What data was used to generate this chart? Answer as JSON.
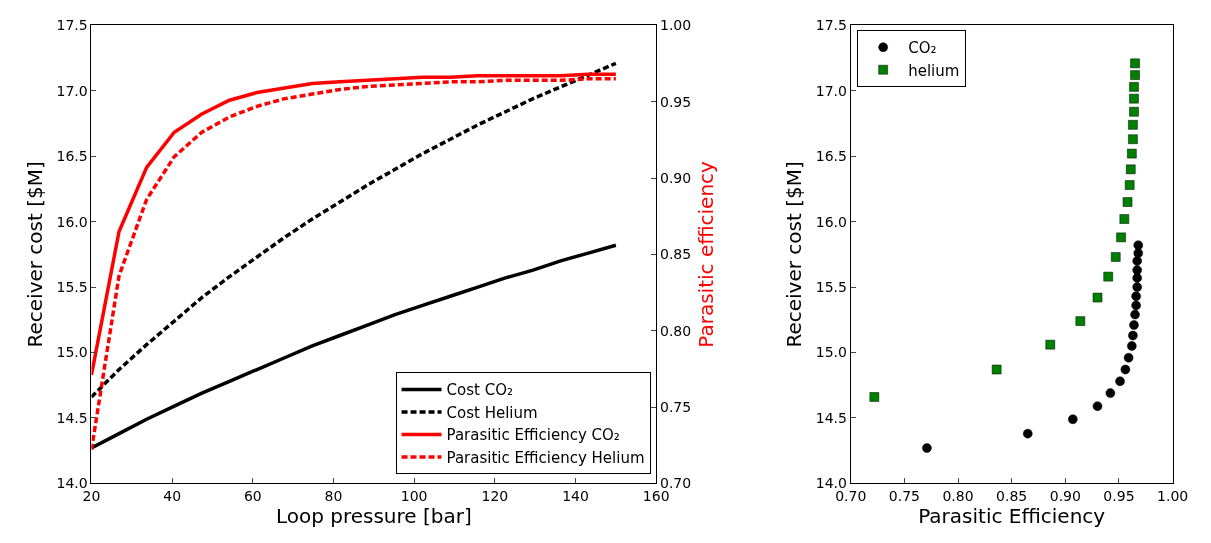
{
  "chart_data": [
    {
      "type": "line",
      "xlabel": "Loop pressure [bar]",
      "ylabel": "Receiver cost [$M]",
      "y2label": "Parasitic efficiency",
      "x": [
        20,
        26.84,
        33.68,
        40.53,
        47.37,
        54.21,
        61.05,
        67.89,
        74.74,
        81.58,
        88.42,
        95.26,
        102.11,
        108.95,
        115.79,
        122.63,
        129.47,
        136.32,
        143.16,
        150
      ],
      "xlim": [
        20,
        160
      ],
      "xticks": [
        20,
        40,
        60,
        80,
        100,
        120,
        140,
        160
      ],
      "ylim": [
        14.0,
        17.5
      ],
      "yticks": [
        {
          "value": 14.0,
          "label": "14.0"
        },
        {
          "value": 14.5,
          "label": "14.5"
        },
        {
          "value": 15.0,
          "label": "15.0"
        },
        {
          "value": 15.5,
          "label": "15.5"
        },
        {
          "value": 16.0,
          "label": "16.0"
        },
        {
          "value": 16.5,
          "label": "16.5"
        },
        {
          "value": 17.0,
          "label": "17.0"
        },
        {
          "value": 17.5,
          "label": "17.5"
        }
      ],
      "y2lim": [
        0.7,
        1.0
      ],
      "y2ticks": [
        {
          "value": 0.7,
          "label": "0.70"
        },
        {
          "value": 0.75,
          "label": "0.75"
        },
        {
          "value": 0.8,
          "label": "0.80"
        },
        {
          "value": 0.85,
          "label": "0.85"
        },
        {
          "value": 0.9,
          "label": "0.90"
        },
        {
          "value": 0.95,
          "label": "0.95"
        },
        {
          "value": 1.0,
          "label": "1.00"
        }
      ],
      "legend": "bottom right",
      "series": [
        {
          "name": "Cost CO₂",
          "color": "#000000",
          "line_style": "solid",
          "values": [
            14.27,
            14.38,
            14.49,
            14.59,
            14.69,
            14.78,
            14.87,
            14.96,
            15.05,
            15.13,
            15.21,
            15.29,
            15.36,
            15.43,
            15.5,
            15.57,
            15.63,
            15.7,
            15.76,
            15.82
          ]
        },
        {
          "name": "Cost Helium",
          "color": "#000000",
          "line_style": "dashed",
          "values": [
            14.66,
            14.87,
            15.06,
            15.24,
            15.42,
            15.58,
            15.73,
            15.88,
            16.02,
            16.15,
            16.28,
            16.4,
            16.52,
            16.63,
            16.74,
            16.84,
            16.94,
            17.03,
            17.12,
            17.21
          ]
        },
        {
          "name": "Parasitic Efficiency CO₂",
          "color": "#ff0000",
          "line_style": "solid",
          "axis": "y2",
          "values": [
            0.771,
            0.865,
            0.907,
            0.93,
            0.942,
            0.951,
            0.956,
            0.959,
            0.962,
            0.963,
            0.964,
            0.965,
            0.966,
            0.966,
            0.967,
            0.967,
            0.967,
            0.967,
            0.968,
            0.968
          ]
        },
        {
          "name": "Parasitic Efficiency Helium",
          "color": "#ff0000",
          "line_style": "dashed",
          "axis": "y2",
          "values": [
            0.722,
            0.836,
            0.886,
            0.914,
            0.93,
            0.94,
            0.947,
            0.952,
            0.955,
            0.958,
            0.96,
            0.961,
            0.962,
            0.963,
            0.963,
            0.964,
            0.964,
            0.964,
            0.965,
            0.965
          ]
        }
      ]
    },
    {
      "type": "scatter",
      "xlabel": "Parasitic Efficiency",
      "ylabel": "Receiver cost [$M]",
      "xlim": [
        0.7,
        1.0
      ],
      "xticks": [
        {
          "value": 0.7,
          "label": "0.70"
        },
        {
          "value": 0.75,
          "label": "0.75"
        },
        {
          "value": 0.8,
          "label": "0.80"
        },
        {
          "value": 0.85,
          "label": "0.85"
        },
        {
          "value": 0.9,
          "label": "0.90"
        },
        {
          "value": 0.95,
          "label": "0.95"
        },
        {
          "value": 1.0,
          "label": "1.00"
        }
      ],
      "ylim": [
        14.0,
        17.5
      ],
      "yticks": [
        {
          "value": 14.0,
          "label": "14.0"
        },
        {
          "value": 14.5,
          "label": "14.5"
        },
        {
          "value": 15.0,
          "label": "15.0"
        },
        {
          "value": 15.5,
          "label": "15.5"
        },
        {
          "value": 16.0,
          "label": "16.0"
        },
        {
          "value": 16.5,
          "label": "16.5"
        },
        {
          "value": 17.0,
          "label": "17.0"
        },
        {
          "value": 17.5,
          "label": "17.5"
        }
      ],
      "legend": "top left",
      "series": [
        {
          "name": "CO₂",
          "color": "#000000",
          "marker": "circle",
          "x": [
            0.771,
            0.865,
            0.907,
            0.93,
            0.942,
            0.951,
            0.956,
            0.959,
            0.962,
            0.963,
            0.964,
            0.965,
            0.966,
            0.966,
            0.967,
            0.967,
            0.967,
            0.967,
            0.968,
            0.968
          ],
          "values": [
            14.27,
            14.38,
            14.49,
            14.59,
            14.69,
            14.78,
            14.87,
            14.96,
            15.05,
            15.13,
            15.21,
            15.29,
            15.36,
            15.43,
            15.5,
            15.57,
            15.63,
            15.7,
            15.76,
            15.82
          ]
        },
        {
          "name": "helium",
          "color": "#008000",
          "marker": "square",
          "x": [
            0.722,
            0.836,
            0.886,
            0.914,
            0.93,
            0.94,
            0.947,
            0.952,
            0.955,
            0.958,
            0.96,
            0.961,
            0.962,
            0.963,
            0.963,
            0.964,
            0.964,
            0.964,
            0.965,
            0.965
          ],
          "values": [
            14.66,
            14.87,
            15.06,
            15.24,
            15.42,
            15.58,
            15.73,
            15.88,
            16.02,
            16.15,
            16.28,
            16.4,
            16.52,
            16.63,
            16.74,
            16.84,
            16.94,
            17.03,
            17.12,
            17.21
          ]
        }
      ]
    }
  ]
}
